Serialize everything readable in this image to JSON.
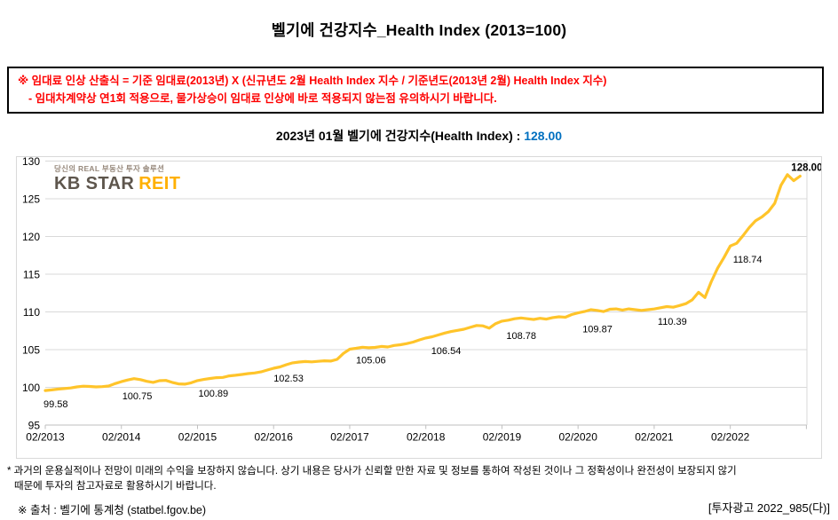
{
  "page": {
    "title": "벨기에 건강지수_Health Index (2013=100)",
    "notice": {
      "line1": "※ 임대료 인상 산출식 = 기준 임대료(2013년) X (신규년도 2월 Health Index 지수 / 기준년도(2013년 2월) Health Index 지수)",
      "line2": "- 임대차계약상 연1회 적용으로, 물가상승이 임대료 인상에 바로 적용되지 않는점 유의하시기 바랍니다."
    },
    "subtitle": {
      "label": "2023년 01월 벨기에 건강지수(Health Index) : ",
      "value": "128.00",
      "value_color": "#0070c0"
    },
    "logo": {
      "tagline": "당신의 REAL 부동산 투자 솔루션",
      "name_primary": "KB STAR",
      "name_accent": "REIT",
      "primary_color": "#5e564d",
      "accent_color": "#ffb000"
    },
    "footnote_line1": "* 과거의 운용실적이나 전망이 미래의 수익을 보장하지 않습니다. 상기 내용은 당사가 신뢰할 만한 자료 및 정보를 통하여 작성된 것이나 그 정확성이나 완전성이 보장되지 않기",
    "footnote_line2": "때문에 투자의 참고자료로 활용하시기 바랍니다.",
    "source": "※ 출처 : 벨기에 통계청 (statbel.fgov.be)",
    "ad_code": "[투자광고 2022_985(다)]"
  },
  "chart_data": {
    "type": "line",
    "title": "벨기에 건강지수(Health Index), 2013=100",
    "x_interval": "monthly",
    "x_start": "2013-02",
    "x_end": "2023-01",
    "x_tick_labels": [
      "02/2013",
      "02/2014",
      "02/2015",
      "02/2016",
      "02/2017",
      "02/2018",
      "02/2019",
      "02/2020",
      "02/2021",
      "02/2022"
    ],
    "y_ticks": [
      95,
      100,
      105,
      110,
      115,
      120,
      125,
      130
    ],
    "ylim": [
      95,
      130
    ],
    "grid": true,
    "line_color": "#ffc42a",
    "grid_color": "#d9d9d9",
    "axis_color": "#bfbfbf",
    "series": [
      {
        "name": "Health Index",
        "values": [
          99.58,
          99.66,
          99.76,
          99.84,
          99.92,
          100.06,
          100.15,
          100.12,
          100.06,
          100.1,
          100.18,
          100.5,
          100.75,
          100.98,
          101.15,
          101.02,
          100.8,
          100.66,
          100.88,
          100.92,
          100.66,
          100.46,
          100.42,
          100.6,
          100.89,
          101.05,
          101.18,
          101.28,
          101.32,
          101.52,
          101.6,
          101.7,
          101.82,
          101.9,
          102.05,
          102.3,
          102.53,
          102.7,
          103.0,
          103.25,
          103.35,
          103.42,
          103.38,
          103.45,
          103.52,
          103.48,
          103.7,
          104.5,
          105.06,
          105.18,
          105.32,
          105.25,
          105.3,
          105.42,
          105.35,
          105.55,
          105.65,
          105.8,
          106.0,
          106.3,
          106.54,
          106.7,
          106.95,
          107.2,
          107.4,
          107.55,
          107.7,
          107.95,
          108.2,
          108.15,
          107.85,
          108.45,
          108.78,
          108.9,
          109.1,
          109.2,
          109.1,
          109.0,
          109.15,
          109.05,
          109.25,
          109.35,
          109.3,
          109.65,
          109.87,
          110.05,
          110.3,
          110.2,
          110.05,
          110.35,
          110.4,
          110.25,
          110.4,
          110.3,
          110.2,
          110.3,
          110.39,
          110.55,
          110.7,
          110.62,
          110.85,
          111.1,
          111.6,
          112.6,
          111.9,
          114.0,
          115.8,
          117.2,
          118.74,
          119.1,
          120.1,
          121.2,
          122.1,
          122.6,
          123.3,
          124.4,
          126.8,
          128.2,
          127.4,
          128.0
        ]
      }
    ],
    "annotations": [
      {
        "index": 0,
        "text": "99.58"
      },
      {
        "index": 12,
        "text": "100.75"
      },
      {
        "index": 24,
        "text": "100.89"
      },
      {
        "index": 36,
        "text": "102.53"
      },
      {
        "index": 48,
        "text": "105.06"
      },
      {
        "index": 60,
        "text": "106.54"
      },
      {
        "index": 72,
        "text": "108.78"
      },
      {
        "index": 84,
        "text": "109.87"
      },
      {
        "index": 96,
        "text": "110.39"
      },
      {
        "index": 108,
        "text": "118.74"
      },
      {
        "index": 119,
        "text": "128.00"
      }
    ]
  }
}
